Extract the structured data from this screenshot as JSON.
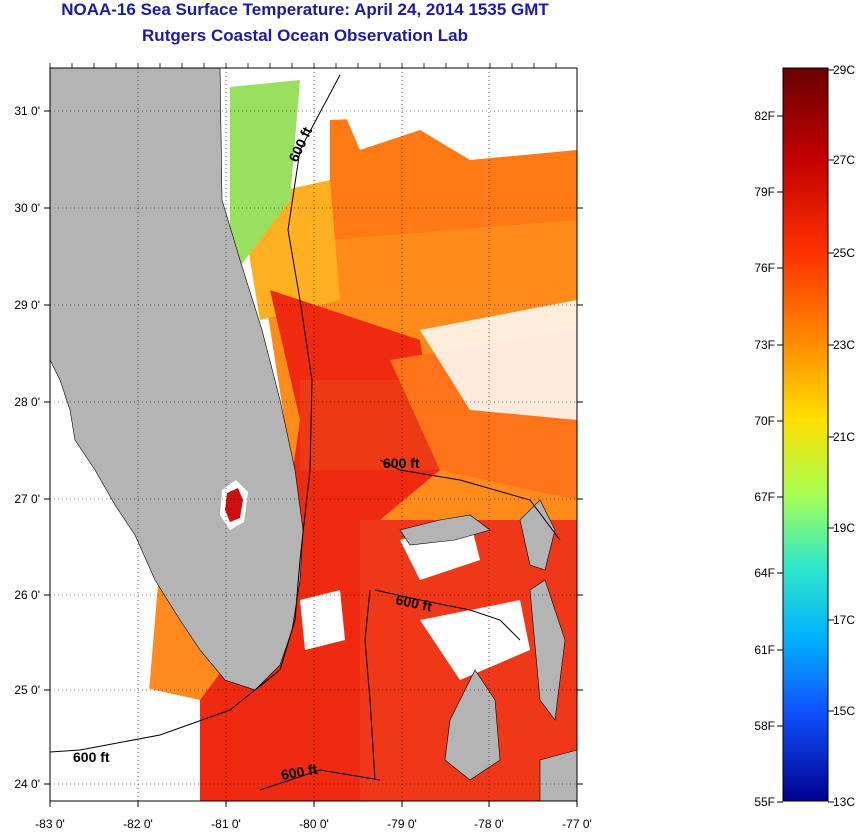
{
  "title": "NOAA-16 Sea Surface Temperature:  April 24, 2014 1535 GMT",
  "subtitle": "Rutgers Coastal Ocean Observation Lab",
  "lat_labels": [
    "31 0'",
    "30 0'",
    "29 0'",
    "28 0'",
    "27 0'",
    "26 0'",
    "25 0'",
    "24 0'"
  ],
  "lon_labels": [
    "-83 0'",
    "-82 0'",
    "-81 0'",
    "-80 0'",
    "-79 0'",
    "-78 0'",
    "-77 0'"
  ],
  "contour_label": "600 ft",
  "colorbar": {
    "fahrenheit": [
      "82F",
      "79F",
      "76F",
      "73F",
      "70F",
      "67F",
      "64F",
      "61F",
      "58F",
      "55F"
    ],
    "celsius": [
      "29C",
      "27C",
      "25C",
      "23C",
      "21C",
      "19C",
      "17C",
      "15C",
      "13C"
    ],
    "colors": [
      "#7a0000",
      "#c00000",
      "#ff2a00",
      "#ff8a00",
      "#ffd800",
      "#b8ff40",
      "#30e6c0",
      "#00b8ff",
      "#1060ff",
      "#0000b0"
    ]
  },
  "colors": {
    "land": "#b4b4b4",
    "cloud": "#ffffff",
    "title": "#1a1aa6"
  }
}
